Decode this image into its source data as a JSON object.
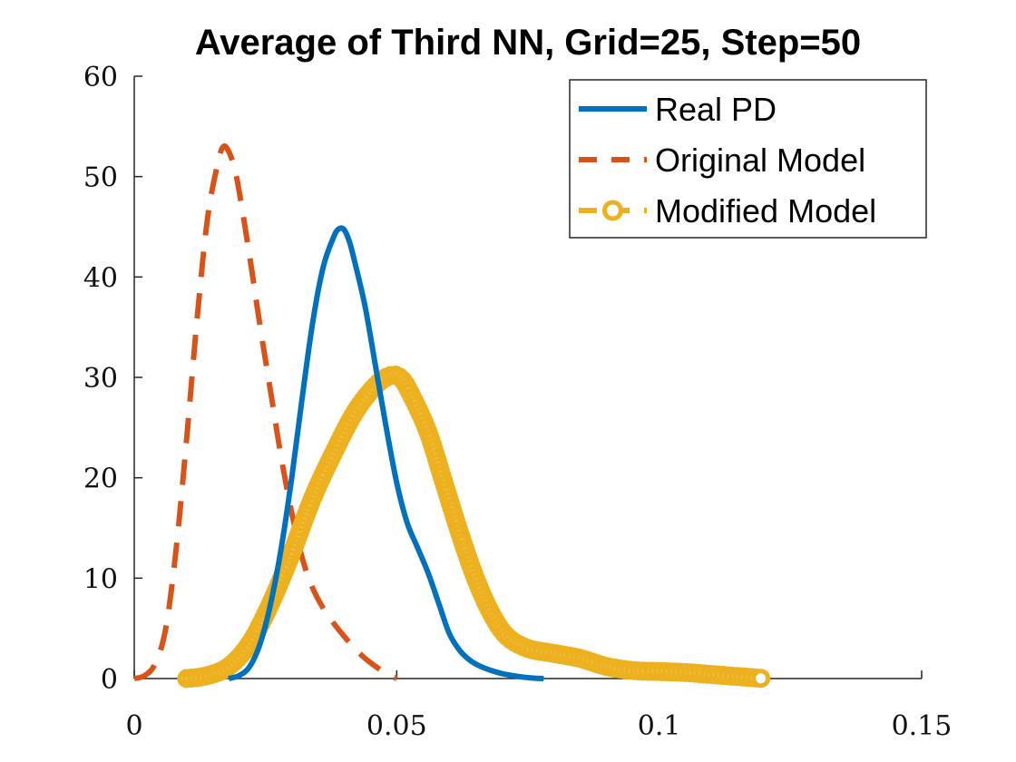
{
  "chart_data": {
    "type": "line",
    "title": "Average of Third NN, Grid=25, Step=50",
    "xlabel": "",
    "ylabel": "",
    "xlim": [
      0,
      0.15
    ],
    "ylim": [
      0,
      60
    ],
    "x_ticks": [
      0,
      0.05,
      0.1,
      0.15
    ],
    "x_tick_labels": [
      "0",
      "0.05",
      "0.1",
      "0.15"
    ],
    "y_ticks": [
      0,
      10,
      20,
      30,
      40,
      50,
      60
    ],
    "y_tick_labels": [
      "0",
      "10",
      "20",
      "30",
      "40",
      "50",
      "60"
    ],
    "grid": false,
    "legend_position": "top-right",
    "series": [
      {
        "name": "Real PD",
        "color": "#0072BD",
        "style": "solid",
        "x": [
          0.018,
          0.02,
          0.022,
          0.024,
          0.026,
          0.028,
          0.03,
          0.032,
          0.034,
          0.036,
          0.038,
          0.039,
          0.04,
          0.041,
          0.042,
          0.044,
          0.046,
          0.048,
          0.05,
          0.052,
          0.054,
          0.056,
          0.058,
          0.06,
          0.062,
          0.064,
          0.066,
          0.068,
          0.07,
          0.072,
          0.074,
          0.076,
          0.078
        ],
        "y": [
          0,
          0.3,
          1.2,
          3.5,
          7.5,
          13,
          20,
          28,
          35.5,
          41,
          44,
          44.8,
          44.7,
          43.5,
          41.5,
          37,
          31,
          25,
          19.5,
          15.5,
          13,
          10.5,
          7.5,
          4.5,
          2.8,
          1.8,
          1.2,
          0.8,
          0.5,
          0.3,
          0.15,
          0.05,
          0
        ]
      },
      {
        "name": "Original Model",
        "color": "#D95319",
        "style": "dashed",
        "x": [
          0.0,
          0.002,
          0.004,
          0.006,
          0.008,
          0.01,
          0.012,
          0.014,
          0.016,
          0.017,
          0.018,
          0.019,
          0.02,
          0.022,
          0.024,
          0.026,
          0.028,
          0.03,
          0.032,
          0.034,
          0.036,
          0.038,
          0.04,
          0.042,
          0.044,
          0.046,
          0.048,
          0.05
        ],
        "y": [
          0,
          0.3,
          1.5,
          5,
          13,
          24,
          36,
          46,
          51.5,
          53,
          52.5,
          51,
          48.5,
          42,
          35,
          28.5,
          22,
          16.5,
          12,
          9,
          7,
          5.5,
          4.2,
          3,
          2,
          1.2,
          0.5,
          0
        ]
      },
      {
        "name": "Modified Model",
        "color": "#EDB120",
        "style": "dashed-circle",
        "x": [
          0.01,
          0.014,
          0.018,
          0.022,
          0.026,
          0.03,
          0.034,
          0.038,
          0.042,
          0.046,
          0.049,
          0.051,
          0.053,
          0.056,
          0.059,
          0.062,
          0.065,
          0.068,
          0.071,
          0.075,
          0.08,
          0.085,
          0.09,
          0.095,
          0.1,
          0.105,
          0.11,
          0.115,
          0.12
        ],
        "y": [
          0,
          0.3,
          1.2,
          3.5,
          7.5,
          12.5,
          18,
          22.5,
          26.5,
          29.2,
          30.2,
          29.8,
          28,
          24.5,
          19.5,
          14.5,
          10,
          6.5,
          4.2,
          3,
          2.5,
          2,
          1.2,
          0.8,
          0.7,
          0.6,
          0.4,
          0.2,
          0
        ]
      }
    ]
  }
}
